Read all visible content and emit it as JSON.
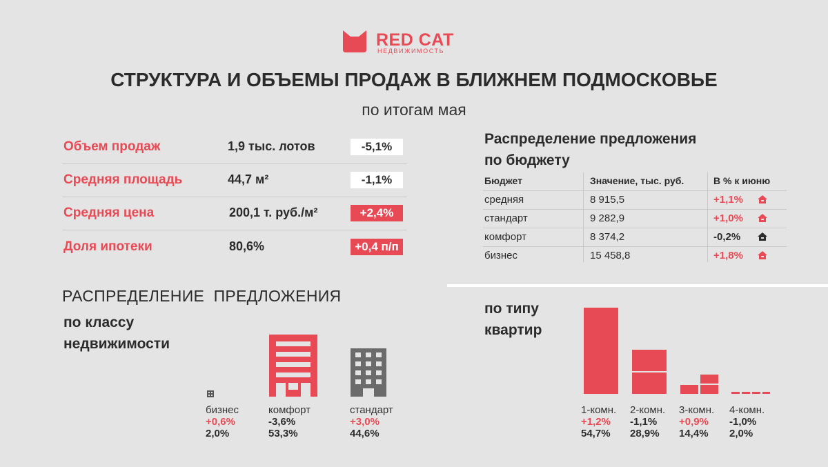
{
  "logo": {
    "brand": "RED CAT",
    "sub": "НЕДВИЖИМОСТЬ",
    "icon": "cat-head-icon",
    "color": "#e84a55"
  },
  "header": {
    "title": "СТРУКТУРА И ОБЪЕМЫ ПРОДАЖ В БЛИЖНЕМ ПОДМОСКОВЬЕ",
    "subtitle": "по итогам мая"
  },
  "kpis": [
    {
      "label": "Объем продаж",
      "value": "1,9 тыс. лотов",
      "change": "-5,1%"
    },
    {
      "label": "Средняя площадь",
      "value": "44,7 м²",
      "change": "-1,1%"
    },
    {
      "label": "Средняя цена",
      "value": "200,1 т. руб./м²",
      "change": "+2,4%"
    },
    {
      "label": "Доля ипотеки",
      "value": "80,6%",
      "change": "+0,4 п/п"
    }
  ],
  "budget": {
    "title_line1": "Распределение предложения",
    "title_line2": "по бюджету",
    "headers": [
      "Бюджет",
      "Значение, тыс. руб.",
      "В % к июню"
    ],
    "rows": [
      {
        "name": "средняя",
        "value": "8 915,5",
        "change": "+1,1%",
        "icon": "house-up-icon"
      },
      {
        "name": "стандарт",
        "value": "9 282,9",
        "change": "+1,0%",
        "icon": "house-up-icon"
      },
      {
        "name": "комфорт",
        "value": "8 374,2",
        "change": "-0,2%",
        "icon": "house-down-icon"
      },
      {
        "name": "бизнес",
        "value": "15 458,8",
        "change": "+1,8%",
        "icon": "house-up-icon"
      }
    ]
  },
  "class_dist": {
    "heading": "РАСПРЕДЕЛЕНИЕ  ПРЕДЛОЖЕНИЯ",
    "sub_line1": "по классу",
    "sub_line2": "недвижимости",
    "items": [
      {
        "label": "бизнес",
        "change": "+0,6%",
        "share": "2,0%",
        "share_value": 2.0
      },
      {
        "label": "комфорт",
        "change": "-3,6%",
        "share": "53,3%",
        "share_value": 53.3
      },
      {
        "label": "стандарт",
        "change": "+3,0%",
        "share": "44,6%",
        "share_value": 44.6
      }
    ]
  },
  "apt_type": {
    "sub_line1": "по типу",
    "sub_line2": "квартир",
    "items": [
      {
        "label": "1-комн.",
        "change": "+1,2%",
        "share": "54,7%",
        "share_value": 54.7
      },
      {
        "label": "2-комн.",
        "change": "-1,1%",
        "share": "28,9%",
        "share_value": 28.9
      },
      {
        "label": "3-комн.",
        "change": "+0,9%",
        "share": "14,4%",
        "share_value": 14.4
      },
      {
        "label": "4-комн.",
        "change": "-1,0%",
        "share": "2,0%",
        "share_value": 2.0
      }
    ]
  },
  "colors": {
    "accent": "#e84a55",
    "dark": "#2b2b2b",
    "grey_building": "#6b6b6b",
    "background": "#e4e4e4"
  }
}
